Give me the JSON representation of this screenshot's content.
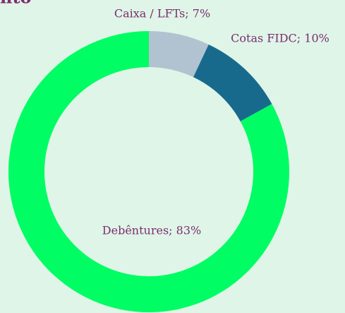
{
  "chart_data": {
    "type": "donut",
    "title": "nto",
    "categories": [
      "Caixa / LFTs",
      "Cotas FIDC",
      "Debêntures"
    ],
    "values": [
      7,
      10,
      83
    ],
    "value_labels": [
      "Caixa / LFTs; 7%",
      "Cotas FIDC; 10%",
      "Debêntures; 83%"
    ],
    "colors": [
      "#b1c3d1",
      "#186a8d",
      "#00fd63"
    ]
  }
}
